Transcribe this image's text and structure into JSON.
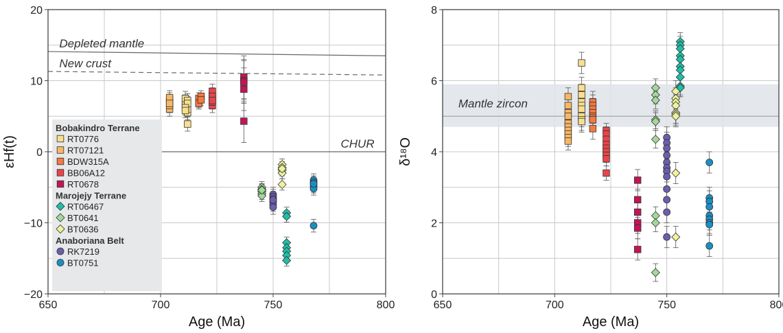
{
  "chart_data": [
    {
      "type": "scatter",
      "xlabel": "Age (Ma)",
      "ylabel": "εHf(t)",
      "xlim": [
        650,
        800
      ],
      "ylim": [
        -20,
        20
      ],
      "xticks": [
        650,
        700,
        750,
        800
      ],
      "yticks": [
        -20,
        -10,
        0,
        10,
        20
      ],
      "ytick_labels": [
        "−20",
        "−10",
        "0",
        "10",
        "20"
      ],
      "grid": true,
      "reference_lines": [
        {
          "label": "Depleted mantle",
          "style": "solid",
          "points": [
            [
              650,
              14.1
            ],
            [
              800,
              13.5
            ]
          ]
        },
        {
          "label": "New crust",
          "style": "dashed",
          "points": [
            [
              650,
              11.3
            ],
            [
              800,
              10.8
            ]
          ]
        },
        {
          "label": "CHUR",
          "style": "solid",
          "points": [
            [
              650,
              0
            ],
            [
              800,
              0
            ]
          ]
        }
      ],
      "legend": {
        "position": "bottom-left",
        "groups": [
          {
            "title": "Bobakindro Terrane",
            "items": [
              {
                "name": "RT0776",
                "marker": "square",
                "color": "#f9de8e"
              },
              {
                "name": "RT07121",
                "marker": "square",
                "color": "#f8b766"
              },
              {
                "name": "BDW315A",
                "marker": "square",
                "color": "#f37a42"
              },
              {
                "name": "BB06A12",
                "marker": "square",
                "color": "#e8454b"
              },
              {
                "name": "RT0678",
                "marker": "square",
                "color": "#c21556"
              }
            ]
          },
          {
            "title": "Marojejy Terrane",
            "items": [
              {
                "name": "RT06467",
                "marker": "diamond",
                "color": "#1fbfa6"
              },
              {
                "name": "BT0641",
                "marker": "diamond",
                "color": "#a2d99a"
              },
              {
                "name": "BT0636",
                "marker": "diamond",
                "color": "#eef29a"
              }
            ]
          },
          {
            "title": "Anaboriana Belt",
            "items": [
              {
                "name": "RK7219",
                "marker": "circle",
                "color": "#6a5fae"
              },
              {
                "name": "BT0751",
                "marker": "circle",
                "color": "#1a8fc4"
              }
            ]
          }
        ]
      },
      "series": [
        {
          "name": "RT0776",
          "x": [
            712,
            712,
            711,
            711,
            711,
            712,
            712,
            711,
            711,
            712
          ],
          "y": [
            5.5,
            6.0,
            6.5,
            7.0,
            7.5,
            7.2,
            6.8,
            6.2,
            5.8,
            3.9
          ],
          "err": 1.0
        },
        {
          "name": "RT07121",
          "x": [
            704,
            704,
            704,
            704,
            704,
            704
          ],
          "y": [
            6.0,
            6.5,
            7.0,
            7.3,
            7.6,
            6.8
          ],
          "err": 1.0
        },
        {
          "name": "BDW315A",
          "x": [
            717,
            717,
            718,
            717,
            718
          ],
          "y": [
            7.0,
            7.5,
            7.8,
            6.8,
            7.3
          ],
          "err": 0.8
        },
        {
          "name": "BB06A12",
          "x": [
            723,
            723,
            723,
            723,
            723,
            723,
            723
          ],
          "y": [
            6.5,
            7.0,
            7.5,
            8.0,
            8.5,
            7.8,
            7.2
          ],
          "err": 1.0
        },
        {
          "name": "RT0678",
          "x": [
            737,
            737,
            737,
            737,
            737
          ],
          "y": [
            10.5,
            10.0,
            9.8,
            8.8,
            4.3
          ],
          "err": 3.0
        },
        {
          "name": "RT06467",
          "x": [
            756,
            756,
            756,
            756,
            756,
            756,
            756
          ],
          "y": [
            -8.6,
            -9.1,
            -12.8,
            -13.5,
            -14.0,
            -14.6,
            -15.3
          ],
          "err": 0.8
        },
        {
          "name": "BT0641",
          "x": [
            745,
            745,
            745,
            745,
            745,
            745
          ],
          "y": [
            -5.0,
            -5.3,
            -5.6,
            -5.9,
            -6.2,
            -5.4
          ],
          "err": 0.8
        },
        {
          "name": "BT0636",
          "x": [
            754,
            754,
            754,
            754,
            754,
            754
          ],
          "y": [
            -1.8,
            -2.2,
            -2.6,
            -3.0,
            -2.4,
            -4.6
          ],
          "err": 0.8
        },
        {
          "name": "RK7219",
          "x": [
            750,
            750,
            750,
            750,
            750,
            750,
            750
          ],
          "y": [
            -6.0,
            -6.3,
            -6.6,
            -7.0,
            -7.4,
            -7.8,
            -6.8
          ],
          "err": 1.0
        },
        {
          "name": "BT0751",
          "x": [
            768,
            768,
            768,
            768,
            768,
            768,
            768
          ],
          "y": [
            -4.0,
            -4.3,
            -4.6,
            -4.9,
            -5.2,
            -4.5,
            -10.4
          ],
          "err": 0.9
        }
      ]
    },
    {
      "type": "scatter",
      "xlabel": "Age (Ma)",
      "ylabel": "δ¹⁸O",
      "xlim": [
        650,
        800
      ],
      "ylim": [
        0,
        8
      ],
      "xticks": [
        650,
        700,
        750,
        800
      ],
      "yticks": [
        0,
        2,
        4,
        6,
        8
      ],
      "ytick_labels": [
        "0",
        "2",
        "4",
        "6",
        "8"
      ],
      "grid": true,
      "band": {
        "label": "Mantle zircon",
        "y0": 4.7,
        "y1": 5.9,
        "mid": 5.0
      },
      "series": [
        {
          "name": "RT0776",
          "x": [
            712,
            712,
            712,
            712,
            712,
            712,
            712,
            712,
            712
          ],
          "y": [
            6.5,
            5.8,
            5.6,
            5.4,
            5.3,
            5.2,
            5.0,
            4.9,
            4.85
          ],
          "err": 0.3
        },
        {
          "name": "RT07121",
          "x": [
            706,
            706,
            706,
            706,
            706,
            706,
            706,
            706,
            706,
            706
          ],
          "y": [
            5.55,
            5.3,
            5.1,
            4.8,
            4.7,
            4.6,
            4.5,
            4.4,
            4.3,
            5.0
          ],
          "err": 0.25
        },
        {
          "name": "BDW315A",
          "x": [
            717,
            717,
            717,
            717,
            717,
            717,
            717,
            717
          ],
          "y": [
            5.4,
            5.3,
            5.2,
            5.1,
            5.0,
            4.95,
            4.9,
            4.65
          ],
          "err": 0.3
        },
        {
          "name": "BB06A12",
          "x": [
            723,
            723,
            723,
            723,
            723,
            723,
            723,
            723,
            723
          ],
          "y": [
            4.6,
            4.5,
            4.35,
            4.2,
            4.1,
            4.0,
            3.9,
            3.8,
            3.4
          ],
          "err": 0.2
        },
        {
          "name": "RT0678",
          "x": [
            737,
            737,
            737,
            737,
            737,
            737
          ],
          "y": [
            3.2,
            2.65,
            2.3,
            2.0,
            1.85,
            1.25
          ],
          "err": 0.3
        },
        {
          "name": "RT06467",
          "x": [
            756,
            756,
            756,
            756,
            756,
            756,
            756,
            756,
            756,
            756,
            756
          ],
          "y": [
            7.1,
            7.0,
            6.9,
            6.7,
            6.6,
            6.4,
            6.3,
            6.1,
            5.85,
            5.8,
            5.8
          ],
          "err": 0.25
        },
        {
          "name": "BT0641",
          "x": [
            745,
            745,
            745,
            745,
            745,
            745,
            745,
            745,
            745
          ],
          "y": [
            5.8,
            5.6,
            5.45,
            4.9,
            4.85,
            4.35,
            2.2,
            2.0,
            0.6
          ],
          "err": 0.25
        },
        {
          "name": "BT0636",
          "x": [
            754,
            754,
            754,
            754,
            754,
            754,
            754,
            754,
            754
          ],
          "y": [
            5.7,
            5.5,
            5.4,
            5.3,
            5.1,
            5.05,
            5.0,
            3.4,
            1.6
          ],
          "err": 0.3
        },
        {
          "name": "RK7219",
          "x": [
            750,
            750,
            750,
            750,
            750,
            750,
            750,
            750,
            750,
            750,
            750,
            750
          ],
          "y": [
            4.4,
            4.25,
            4.1,
            3.9,
            3.7,
            3.55,
            3.45,
            3.3,
            2.95,
            2.65,
            2.3,
            1.6
          ],
          "err": 0.3
        },
        {
          "name": "BT0751",
          "x": [
            769,
            769,
            769,
            769,
            769,
            769,
            769,
            769,
            769
          ],
          "y": [
            3.7,
            2.7,
            2.6,
            2.45,
            2.2,
            2.1,
            2.0,
            1.95,
            1.35
          ],
          "err": 0.3
        }
      ]
    }
  ]
}
